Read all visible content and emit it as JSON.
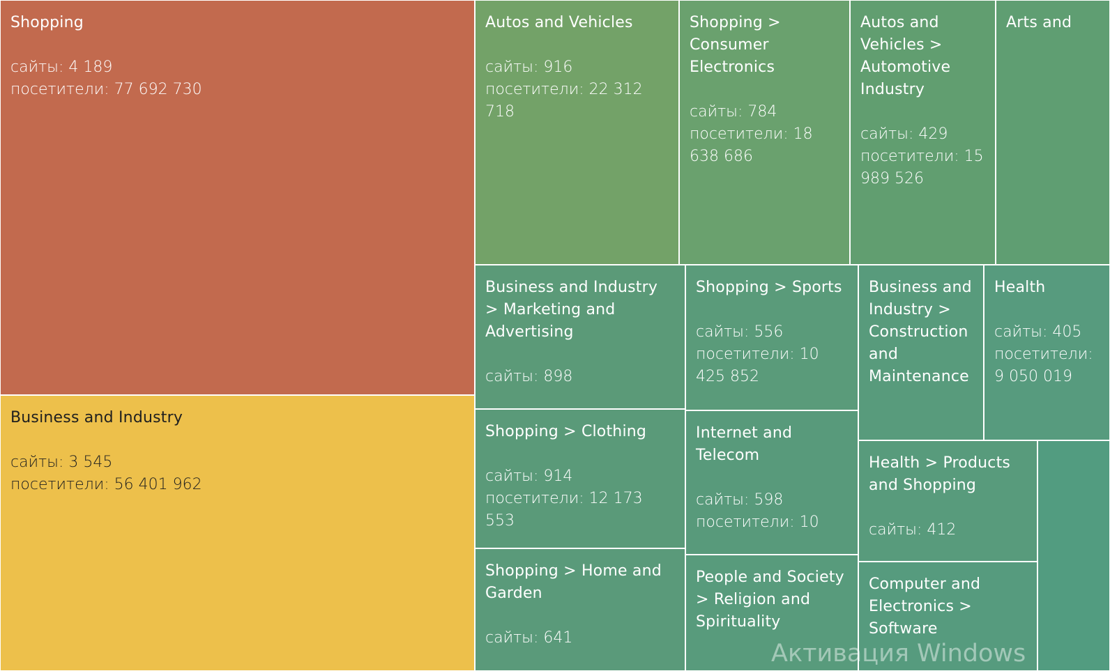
{
  "watermark": "Активация Windows",
  "chart_data": {
    "type": "treemap",
    "metric_labels": {
      "sites": "сайты",
      "visitors": "посетители"
    },
    "tiles": [
      {
        "name": "Shopping",
        "sites": "4 189",
        "visitors": "77 692 730",
        "color": "#C26A4E"
      },
      {
        "name": "Business and Industry",
        "sites": "3 545",
        "visitors": "56 401 962",
        "color": "#EDC04B"
      },
      {
        "name": "Autos and Vehicles",
        "sites": "916",
        "visitors": "22 312 718",
        "color": "#73A268"
      },
      {
        "name": "Shopping > Consumer Electronics",
        "sites": "784",
        "visitors": "18 638 686",
        "color": "#6AA16E"
      },
      {
        "name": "Autos and Vehicles > Automotive Industry",
        "sites": "429",
        "visitors": "15 989 526",
        "color": "#619E70"
      },
      {
        "name": "Arts and",
        "color": "#5F9E72"
      },
      {
        "name": "Business and Industry > Marketing and Advertising",
        "sites": "898",
        "color": "#5B9A78"
      },
      {
        "name": "Shopping > Sports",
        "sites": "556",
        "visitors": "10 425 852",
        "color": "#5A9B7A"
      },
      {
        "name": "Business and Industry > Construction and Maintenance",
        "color": "#589B7C"
      },
      {
        "name": "Health",
        "sites": "405",
        "visitors": "9 050 019",
        "color": "#579B7E"
      },
      {
        "name": "Shopping > Clothing",
        "sites": "914",
        "visitors": "12 173 553",
        "color": "#5A9A79"
      },
      {
        "name": "Internet and Telecom",
        "sites": "598",
        "visitors": "10",
        "color": "#589A7B"
      },
      {
        "name": "Health > Products and Shopping",
        "sites": "412",
        "color": "#589B7C"
      },
      {
        "name": "",
        "color": "#529C80"
      },
      {
        "name": "Shopping > Home and Garden",
        "sites": "641",
        "color": "#5A9A7A"
      },
      {
        "name": "People and Society > Religion and Spirituality",
        "color": "#589B7C"
      },
      {
        "name": "Computer and Electronics > Software",
        "color": "#569B7E"
      }
    ]
  }
}
